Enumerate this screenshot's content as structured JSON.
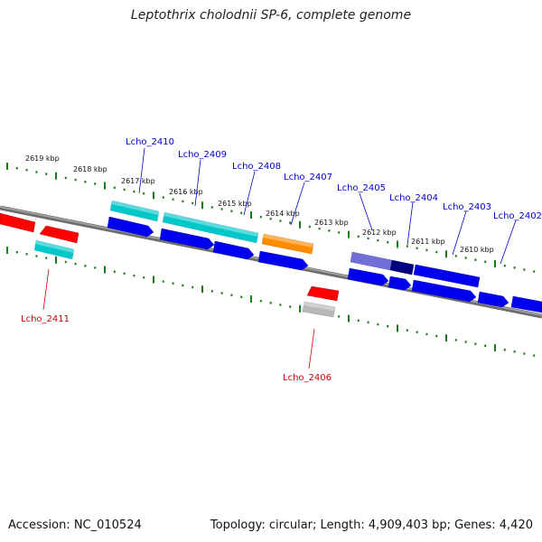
{
  "title": "Leptothrix cholodnii SP-6, complete genome",
  "footer": {
    "accession": "Accession: NC_010524",
    "summary": "Topology: circular; Length: 4,909,403 bp; Genes: 4,420"
  },
  "kbp_labels": [
    "2619 kbp",
    "2618 kbp",
    "2617 kbp",
    "2616 kbp",
    "2615 kbp",
    "2614 kbp",
    "2613 kbp",
    "2612 kbp",
    "2611 kbp",
    "2610 kbp"
  ],
  "gene_labels": {
    "top": [
      "Lcho_2410",
      "Lcho_2409",
      "Lcho_2408",
      "Lcho_2407",
      "Lcho_2405",
      "Lcho_2404",
      "Lcho_2403",
      "Lcho_2402"
    ],
    "bottom": [
      "Lcho_2411",
      "Lcho_2406"
    ]
  },
  "colors": {
    "forward_cds": "#0000ee",
    "reverse_cds": "#ff0000",
    "cyan": "#00cccc",
    "orange": "#ff8c00",
    "light_purple": "#7070d8",
    "navy": "#000080",
    "gray": "#aaaaaa",
    "backbone": "#808080",
    "ticks": "#1a7a1a",
    "top_label": "#0000cc",
    "bottom_label": "#cc0000"
  }
}
